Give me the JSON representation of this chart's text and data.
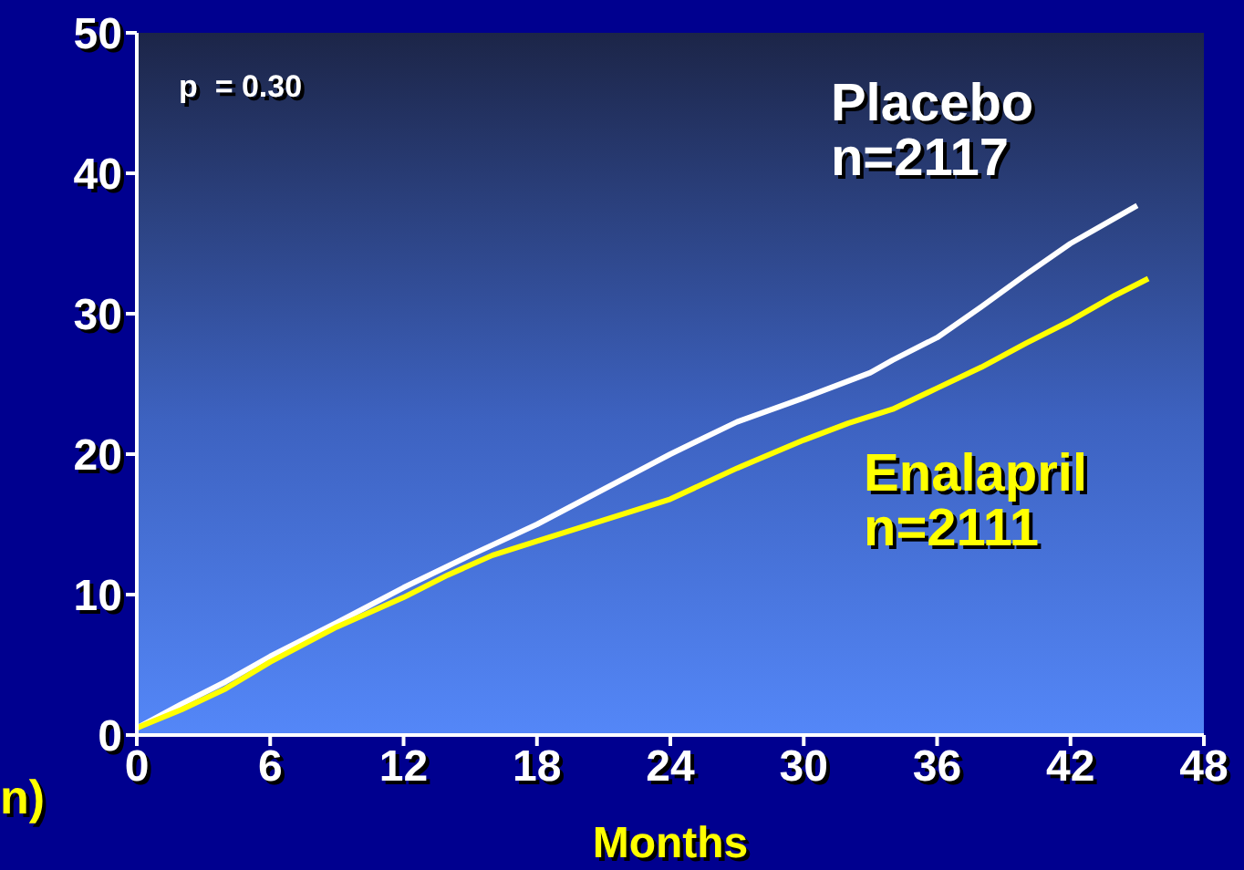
{
  "chart_data": {
    "type": "line",
    "xlabel": "Months",
    "ylabel": "n)",
    "xlim": [
      0,
      48
    ],
    "xticks": [
      0,
      6,
      12,
      18,
      24,
      30,
      36,
      42,
      48
    ],
    "ylim": [
      0,
      50
    ],
    "yticks": [
      0,
      10,
      20,
      30,
      40,
      50
    ],
    "marker": "none",
    "line_style": "solid",
    "series": [
      {
        "name": "Placebo",
        "color": "#ffffff",
        "x": [
          0,
          2,
          4,
          6,
          9,
          12,
          15,
          18,
          21,
          24,
          27,
          30,
          33,
          34,
          36,
          38,
          40,
          42,
          45
        ],
        "values": [
          0.5,
          2.2,
          3.8,
          5.6,
          8,
          10.5,
          12.8,
          15,
          17.5,
          20,
          22.3,
          24,
          25.8,
          26.7,
          28.3,
          30.5,
          32.8,
          35,
          37.7
        ]
      },
      {
        "name": "Enalapril",
        "color": "#ffff00",
        "x": [
          0,
          2,
          4,
          6,
          9,
          12,
          14,
          16,
          18,
          21,
          24,
          27,
          30,
          32,
          34,
          36,
          38,
          40,
          42,
          44,
          45.5
        ],
        "values": [
          0.5,
          1.8,
          3.3,
          5.2,
          7.7,
          9.8,
          11.4,
          12.8,
          13.8,
          15.3,
          16.8,
          19,
          21,
          22.2,
          23.2,
          24.7,
          26.2,
          27.9,
          29.5,
          31.3,
          32.5
        ]
      }
    ],
    "annotations": [
      "p  = 0.30",
      "n=2117",
      "n=2111"
    ]
  }
}
